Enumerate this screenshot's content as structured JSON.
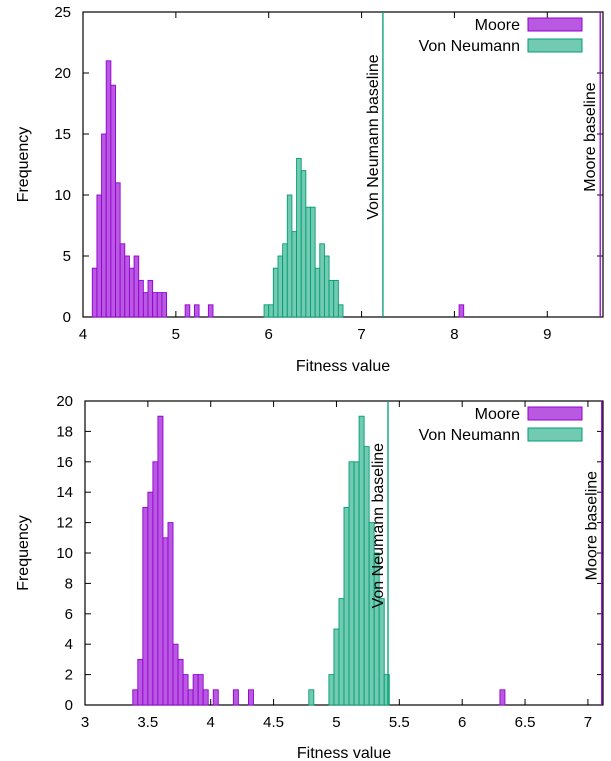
{
  "chart_data": [
    {
      "type": "bar",
      "subtype": "histogram",
      "xlabel": "Fitness value",
      "ylabel": "Frequency",
      "xlim": [
        4,
        9.6
      ],
      "ylim": [
        0,
        25
      ],
      "bin_width": 0.05,
      "xticks": [
        "4",
        "5",
        "6",
        "7",
        "8",
        "9"
      ],
      "yticks": [
        "0",
        "5",
        "10",
        "15",
        "20",
        "25"
      ],
      "legend_position": "top-right",
      "series": [
        {
          "name": "Moore",
          "color": "#9400d3",
          "bins": [
            {
              "x": 4.125,
              "y": 4
            },
            {
              "x": 4.175,
              "y": 10
            },
            {
              "x": 4.225,
              "y": 15
            },
            {
              "x": 4.275,
              "y": 21
            },
            {
              "x": 4.325,
              "y": 19
            },
            {
              "x": 4.375,
              "y": 11
            },
            {
              "x": 4.425,
              "y": 6
            },
            {
              "x": 4.475,
              "y": 5
            },
            {
              "x": 4.525,
              "y": 4
            },
            {
              "x": 4.575,
              "y": 5
            },
            {
              "x": 4.625,
              "y": 3
            },
            {
              "x": 4.675,
              "y": 2
            },
            {
              "x": 4.725,
              "y": 3
            },
            {
              "x": 4.775,
              "y": 2
            },
            {
              "x": 4.825,
              "y": 2
            },
            {
              "x": 4.875,
              "y": 2
            },
            {
              "x": 5.125,
              "y": 1
            },
            {
              "x": 5.225,
              "y": 1
            },
            {
              "x": 5.375,
              "y": 1
            },
            {
              "x": 8.075,
              "y": 1
            }
          ]
        },
        {
          "name": "Von Neumann",
          "color": "#009e73",
          "bins": [
            {
              "x": 5.975,
              "y": 1
            },
            {
              "x": 6.025,
              "y": 1
            },
            {
              "x": 6.075,
              "y": 4
            },
            {
              "x": 6.125,
              "y": 5
            },
            {
              "x": 6.175,
              "y": 6
            },
            {
              "x": 6.225,
              "y": 10
            },
            {
              "x": 6.275,
              "y": 7
            },
            {
              "x": 6.325,
              "y": 13
            },
            {
              "x": 6.375,
              "y": 12
            },
            {
              "x": 6.425,
              "y": 9
            },
            {
              "x": 6.475,
              "y": 9
            },
            {
              "x": 6.525,
              "y": 4
            },
            {
              "x": 6.575,
              "y": 6
            },
            {
              "x": 6.625,
              "y": 5
            },
            {
              "x": 6.675,
              "y": 3
            },
            {
              "x": 6.725,
              "y": 3
            },
            {
              "x": 6.775,
              "y": 1
            }
          ]
        }
      ],
      "baselines": [
        {
          "label": "Von Neumann baseline",
          "x": 7.23,
          "color": "#009e73"
        },
        {
          "label": "Moore baseline",
          "x": 9.57,
          "color": "#9400d3"
        }
      ]
    },
    {
      "type": "bar",
      "subtype": "histogram",
      "xlabel": "Fitness value",
      "ylabel": "Frequency",
      "xlim": [
        3,
        7.12
      ],
      "ylim": [
        0,
        20
      ],
      "bin_width": 0.04,
      "xticks": [
        "3",
        "3.5",
        "4",
        "4.5",
        "5",
        "5.5",
        "6",
        "6.5",
        "7"
      ],
      "yticks": [
        "0",
        "2",
        "4",
        "6",
        "8",
        "10",
        "12",
        "14",
        "16",
        "18",
        "20"
      ],
      "legend_position": "top-right",
      "series": [
        {
          "name": "Moore",
          "color": "#9400d3",
          "bins": [
            {
              "x": 3.4,
              "y": 1
            },
            {
              "x": 3.44,
              "y": 3
            },
            {
              "x": 3.48,
              "y": 13
            },
            {
              "x": 3.52,
              "y": 14
            },
            {
              "x": 3.56,
              "y": 16
            },
            {
              "x": 3.6,
              "y": 19
            },
            {
              "x": 3.64,
              "y": 11
            },
            {
              "x": 3.68,
              "y": 12
            },
            {
              "x": 3.72,
              "y": 4
            },
            {
              "x": 3.76,
              "y": 3
            },
            {
              "x": 3.8,
              "y": 2
            },
            {
              "x": 3.84,
              "y": 1
            },
            {
              "x": 3.88,
              "y": 2
            },
            {
              "x": 3.92,
              "y": 2
            },
            {
              "x": 3.96,
              "y": 1
            },
            {
              "x": 4.04,
              "y": 1
            },
            {
              "x": 4.2,
              "y": 1
            },
            {
              "x": 4.32,
              "y": 1
            },
            {
              "x": 6.32,
              "y": 1
            }
          ]
        },
        {
          "name": "Von Neumann",
          "color": "#009e73",
          "bins": [
            {
              "x": 4.8,
              "y": 1
            },
            {
              "x": 4.96,
              "y": 2
            },
            {
              "x": 5.0,
              "y": 5
            },
            {
              "x": 5.04,
              "y": 7
            },
            {
              "x": 5.08,
              "y": 13
            },
            {
              "x": 5.12,
              "y": 16
            },
            {
              "x": 5.16,
              "y": 16
            },
            {
              "x": 5.2,
              "y": 19
            },
            {
              "x": 5.24,
              "y": 17
            },
            {
              "x": 5.28,
              "y": 12
            },
            {
              "x": 5.32,
              "y": 10
            },
            {
              "x": 5.36,
              "y": 7
            },
            {
              "x": 5.4,
              "y": 2
            }
          ]
        }
      ],
      "baselines": [
        {
          "label": "Von Neumann baseline",
          "x": 5.41,
          "color": "#009e73"
        },
        {
          "label": "Moore baseline",
          "x": 7.11,
          "color": "#9400d3"
        }
      ]
    }
  ]
}
